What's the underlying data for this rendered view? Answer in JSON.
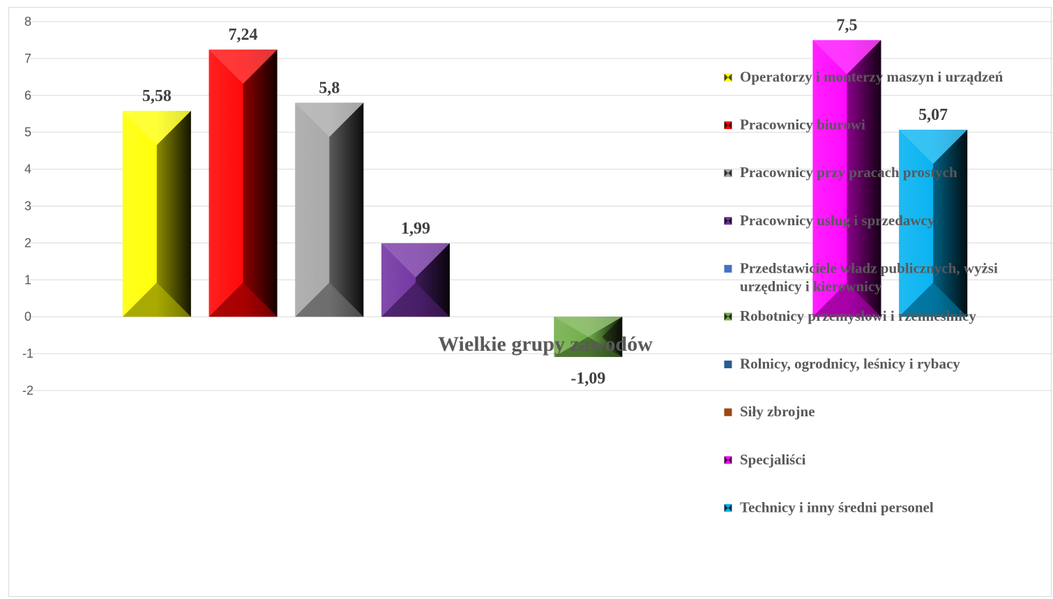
{
  "chart_data": {
    "type": "bar",
    "title": "",
    "xlabel": "Wielkie grupy zawodów",
    "ylabel": "",
    "ylim": [
      -2,
      8
    ],
    "yticks": [
      -2,
      -1,
      0,
      1,
      2,
      3,
      4,
      5,
      6,
      7,
      8
    ],
    "grid": true,
    "legend_position": "right",
    "series": [
      {
        "name": "Operatorzy i monterzy maszyn i urządzeń",
        "value": 5.58,
        "label": "5,58",
        "color": "#ffff00"
      },
      {
        "name": "Pracownicy biurowi",
        "value": 7.24,
        "label": "7,24",
        "color": "#ff0000"
      },
      {
        "name": "Pracownicy przy pracach prostych",
        "value": 5.8,
        "label": "5,8",
        "color": "#a6a6a6"
      },
      {
        "name": "Pracownicy usług i sprzedawcy",
        "value": 1.99,
        "label": "1,99",
        "color": "#7030a0"
      },
      {
        "name": "Przedstawiciele władz publicznych, wyżsi urzędnicy i kierownicy",
        "value": null,
        "label": "",
        "color": "#4472c4"
      },
      {
        "name": "Robotnicy przemysłowi i rzemieślnicy",
        "value": -1.09,
        "label": "-1,09",
        "color": "#70ad47"
      },
      {
        "name": "Rolnicy, ogrodnicy, leśnicy i rybacy",
        "value": null,
        "label": "",
        "color": "#255e91"
      },
      {
        "name": "Siły zbrojne",
        "value": null,
        "label": "",
        "color": "#9e480e"
      },
      {
        "name": "Specjaliści",
        "value": 7.5,
        "label": "7,5",
        "color": "#ff00ff"
      },
      {
        "name": "Technicy i inny średni personel",
        "value": 5.07,
        "label": "5,07",
        "color": "#00b0f0"
      }
    ]
  }
}
